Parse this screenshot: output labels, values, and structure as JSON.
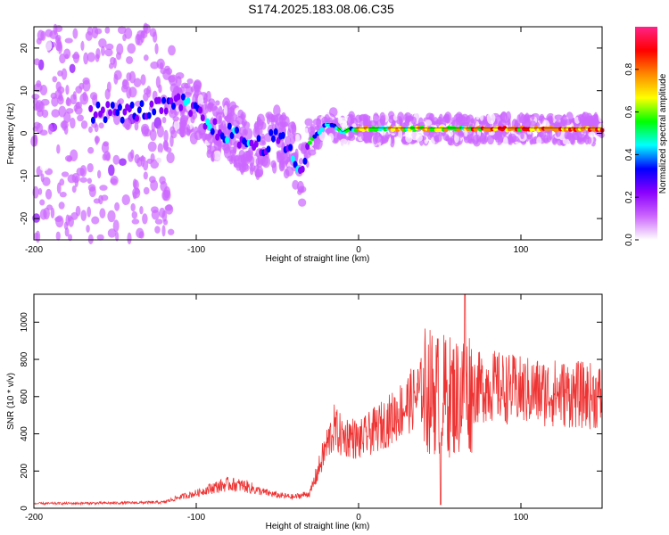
{
  "title": "S174.2025.183.08.06.C35",
  "chart_data": [
    {
      "type": "heatmap",
      "xlabel": "Height of straight line (km)",
      "ylabel": "Frequency (Hz)",
      "xlim": [
        -200,
        150
      ],
      "ylim": [
        -25,
        25
      ],
      "xticks": [
        -200,
        -100,
        0,
        100
      ],
      "yticks": [
        -20,
        -10,
        0,
        10,
        20
      ],
      "colorbar": {
        "label": "Normalized spectral amplitude",
        "range": [
          0,
          1
        ],
        "ticks": [
          "0.0",
          "0.2",
          "0.4",
          "0.6",
          "0.8"
        ],
        "colormap": [
          "#ffffff",
          "#cc66ff",
          "#8a00ff",
          "#0000ff",
          "#00ffff",
          "#00ff00",
          "#ffff00",
          "#ff8800",
          "#ff0000",
          "#ff2288"
        ]
      },
      "ridge": {
        "x": [
          -160,
          -140,
          -120,
          -110,
          -100,
          -90,
          -80,
          -70,
          -60,
          -50,
          -45,
          -40,
          -35,
          -32,
          -30,
          -25,
          -20,
          -15,
          -10,
          -5,
          0,
          25,
          50,
          75,
          100,
          125,
          150
        ],
        "y": [
          5,
          5,
          6,
          7,
          5,
          1,
          0,
          -2,
          -3,
          -1,
          -3,
          -5,
          -10,
          -4,
          -2,
          0,
          2,
          2,
          0,
          1,
          1,
          1,
          1,
          1,
          1,
          1,
          1
        ]
      }
    },
    {
      "type": "line",
      "xlabel": "Height of straight line (km)",
      "ylabel": "SNR (10 * v/v)",
      "xlim": [
        -200,
        150
      ],
      "ylim": [
        0,
        1150
      ],
      "xticks": [
        -200,
        -100,
        0,
        100
      ],
      "yticks": [
        0,
        200,
        400,
        600,
        800,
        1000
      ],
      "line_color": "#ee3333",
      "envelope": {
        "x": [
          -200,
          -150,
          -120,
          -110,
          -100,
          -90,
          -80,
          -70,
          -60,
          -50,
          -40,
          -30,
          -25,
          -20,
          -15,
          -10,
          -5,
          0,
          10,
          20,
          30,
          40,
          50,
          60,
          70,
          80,
          100,
          120,
          150
        ],
        "y": [
          25,
          28,
          32,
          60,
          80,
          110,
          130,
          120,
          90,
          70,
          60,
          80,
          200,
          330,
          430,
          380,
          390,
          360,
          420,
          480,
          560,
          640,
          610,
          600,
          640,
          660,
          630,
          620,
          600
        ]
      }
    }
  ]
}
